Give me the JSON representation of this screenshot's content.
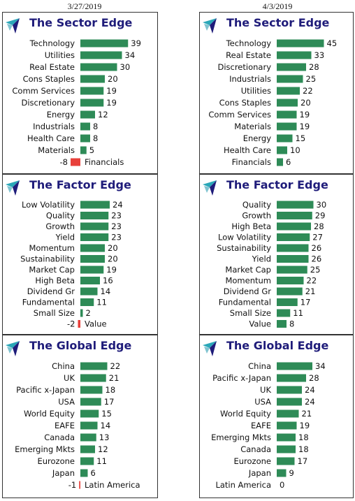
{
  "dates": {
    "left": "3/27/2019",
    "right": "4/3/2019"
  },
  "colors": {
    "positive": "#2e8b57",
    "negative": "#e8403a",
    "title": "#1f1c7a",
    "logo_a": "#2aa7b8",
    "logo_b": "#1f1c7a"
  },
  "chart_data": [
    {
      "type": "bar",
      "title": "The Sector Edge",
      "date": "3/27/2019",
      "categories": [
        "Technology",
        "Utilities",
        "Real Estate",
        "Cons Staples",
        "Comm Services",
        "Discretionary",
        "Energy",
        "Industrials",
        "Health Care",
        "Materials",
        "Financials"
      ],
      "values": [
        39,
        34,
        30,
        20,
        19,
        19,
        12,
        8,
        8,
        5,
        -8
      ]
    },
    {
      "type": "bar",
      "title": "The Sector Edge",
      "date": "4/3/2019",
      "categories": [
        "Technology",
        "Real Estate",
        "Discretionary",
        "Industrials",
        "Utilities",
        "Cons Staples",
        "Comm Services",
        "Materials",
        "Energy",
        "Health Care",
        "Financials"
      ],
      "values": [
        45,
        33,
        28,
        25,
        22,
        20,
        19,
        19,
        15,
        10,
        6
      ]
    },
    {
      "type": "bar",
      "title": "The Factor Edge",
      "date": "3/27/2019",
      "categories": [
        "Low Volatility",
        "Quality",
        "Growth",
        "Yield",
        "Momentum",
        "Sustainability",
        "Market Cap",
        "High Beta",
        "Dividend Gr",
        "Fundamental",
        "Small Size",
        "Value"
      ],
      "values": [
        24,
        23,
        23,
        23,
        20,
        20,
        19,
        16,
        14,
        11,
        2,
        -2
      ]
    },
    {
      "type": "bar",
      "title": "The Factor Edge",
      "date": "4/3/2019",
      "categories": [
        "Quality",
        "Growth",
        "High Beta",
        "Low Volatility",
        "Sustainability",
        "Yield",
        "Market Cap",
        "Momentum",
        "Dividend Gr",
        "Fundamental",
        "Small Size",
        "Value"
      ],
      "values": [
        30,
        29,
        28,
        27,
        26,
        26,
        25,
        22,
        21,
        17,
        11,
        8
      ]
    },
    {
      "type": "bar",
      "title": "The Global Edge",
      "date": "3/27/2019",
      "categories": [
        "China",
        "UK",
        "Pacific x-Japan",
        "USA",
        "World Equity",
        "EAFE",
        "Canada",
        "Emerging Mkts",
        "Eurozone",
        "Japan",
        "Latin America"
      ],
      "values": [
        22,
        21,
        18,
        17,
        15,
        14,
        13,
        12,
        11,
        6,
        -1
      ]
    },
    {
      "type": "bar",
      "title": "The Global Edge",
      "date": "4/3/2019",
      "categories": [
        "China",
        "Pacific x-Japan",
        "UK",
        "USA",
        "World Equity",
        "EAFE",
        "Emerging Mkts",
        "Canada",
        "Eurozone",
        "Japan",
        "Latin America"
      ],
      "values": [
        34,
        28,
        24,
        24,
        21,
        19,
        18,
        18,
        17,
        9,
        0
      ]
    }
  ]
}
